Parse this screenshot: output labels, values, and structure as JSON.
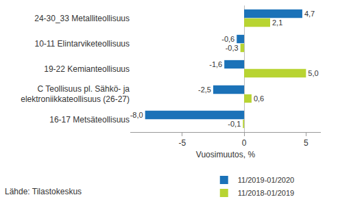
{
  "chart_data": {
    "type": "bar",
    "orientation": "horizontal",
    "x_label": "Vuosimuutos, %",
    "source": "Lähde: Tilastokeskus",
    "categories": [
      "24-30_33 Metalliteollisuus",
      "10-11 Elintarviketeollisuus",
      "19-22 Kemianteollisuus",
      "C Teollisuus pl. Sähkö- ja elektroniikkateollisuus (26-27)",
      "16-17 Metsäteollisuus"
    ],
    "series": [
      {
        "name": "11/2019-01/2020",
        "color": "#1b72b8",
        "values": [
          4.7,
          -0.6,
          -1.6,
          -2.5,
          -8.0
        ],
        "value_labels": [
          "4,7",
          "-0,6",
          "-1,6",
          "-2,5",
          "-8,0"
        ]
      },
      {
        "name": "11/2018-01/2019",
        "color": "#b8d432",
        "values": [
          2.1,
          -0.3,
          5.0,
          0.6,
          -0.1
        ],
        "value_labels": [
          "2,1",
          "-0,3",
          "5,0",
          "0,6",
          "-0,1"
        ]
      }
    ],
    "xlim": [
      -9.2,
      6.2
    ],
    "xticks": [
      -5,
      0,
      5
    ],
    "grid": false,
    "data_labels": true,
    "legend": "bottom"
  }
}
